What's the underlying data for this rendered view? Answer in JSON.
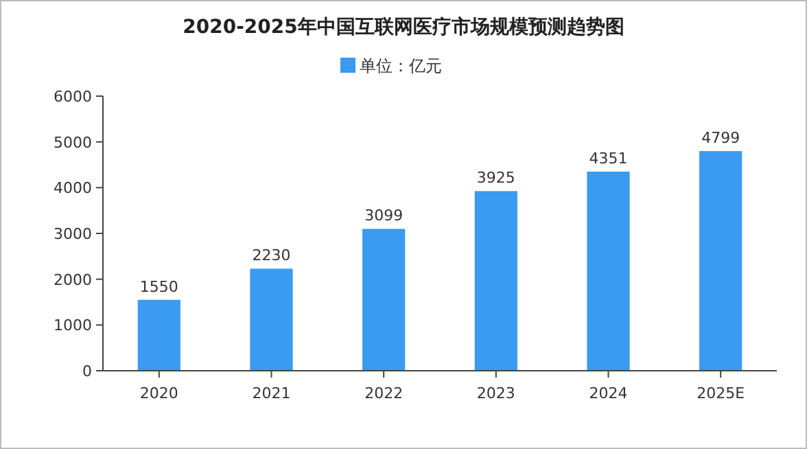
{
  "chart_data": {
    "type": "bar",
    "title": "2020-2025年中国互联网医疗市场规模预测趋势图",
    "categories": [
      "2020",
      "2021",
      "2022",
      "2023",
      "2024",
      "2025E"
    ],
    "series": [
      {
        "name": "单位：亿元",
        "color": "#3a9bf0",
        "values": [
          1550,
          2230,
          3099,
          3925,
          4351,
          4799
        ]
      }
    ],
    "ylim": [
      0,
      6000
    ],
    "yticks": [
      0,
      1000,
      2000,
      3000,
      4000,
      5000,
      6000
    ],
    "grid": false,
    "legend": "top",
    "data_labels": true
  }
}
